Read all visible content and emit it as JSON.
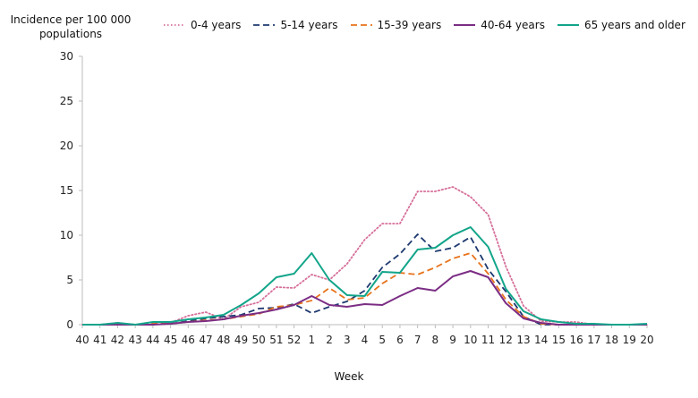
{
  "chart_data": {
    "type": "line",
    "title": "",
    "ylabel": "Incidence per 100 000\npopulations",
    "xlabel": "Week",
    "categories": [
      "40",
      "41",
      "42",
      "43",
      "44",
      "45",
      "46",
      "47",
      "48",
      "49",
      "50",
      "51",
      "52",
      "1",
      "2",
      "3",
      "4",
      "5",
      "6",
      "7",
      "8",
      "9",
      "10",
      "11",
      "12",
      "13",
      "14",
      "15",
      "16",
      "17",
      "18",
      "19",
      "20"
    ],
    "ylim": [
      0,
      30
    ],
    "yticks": [
      0,
      5,
      10,
      15,
      20,
      25,
      30
    ],
    "grid": false,
    "legend_position": "top",
    "series": [
      {
        "name": "0-4 years",
        "color": "#d6709a",
        "dash": "dotted",
        "values": [
          0,
          0,
          0.2,
          0,
          0,
          0.2,
          1.0,
          1.4,
          0.6,
          2.0,
          2.5,
          4.2,
          4.1,
          5.6,
          5.0,
          6.8,
          9.5,
          11.3,
          11.3,
          14.9,
          14.9,
          15.4,
          14.3,
          12.3,
          6.5,
          2.1,
          0.4,
          0.3,
          0.3,
          0,
          0,
          0,
          0
        ]
      },
      {
        "name": "5-14 years",
        "color": "#1f3a70",
        "dash": "dashed",
        "values": [
          0,
          0,
          0.1,
          0,
          0.1,
          0.1,
          0.4,
          0.7,
          0.9,
          1.1,
          1.8,
          1.9,
          2.3,
          1.3,
          2.0,
          2.6,
          3.8,
          6.4,
          7.9,
          10.1,
          8.2,
          8.6,
          9.8,
          6.2,
          3.7,
          0.9,
          0,
          0,
          0,
          0,
          0,
          0,
          0
        ]
      },
      {
        "name": "15-39 years",
        "color": "#e8731c",
        "dash": "dashed",
        "values": [
          0,
          0,
          0.1,
          0,
          0.1,
          0.1,
          0.3,
          0.5,
          0.6,
          0.9,
          1.2,
          2.0,
          2.2,
          2.7,
          4.1,
          2.8,
          3.0,
          4.6,
          5.8,
          5.6,
          6.4,
          7.4,
          8.0,
          5.7,
          2.8,
          0.9,
          0.1,
          0,
          0,
          0,
          0,
          0,
          0
        ]
      },
      {
        "name": "40-64 years",
        "color": "#7b2d84",
        "dash": "solid",
        "values": [
          0,
          0,
          0,
          0,
          0,
          0.1,
          0.3,
          0.4,
          0.6,
          1.0,
          1.3,
          1.7,
          2.2,
          3.2,
          2.2,
          2.0,
          2.3,
          2.2,
          3.2,
          4.1,
          3.8,
          5.4,
          6.0,
          5.3,
          2.4,
          0.7,
          0.2,
          0,
          0,
          0,
          0,
          0,
          0
        ]
      },
      {
        "name": "65 years and older",
        "color": "#13a58a",
        "dash": "solid",
        "values": [
          0,
          0,
          0.2,
          0,
          0.3,
          0.3,
          0.6,
          0.8,
          1.1,
          2.2,
          3.5,
          5.3,
          5.7,
          8.0,
          5.0,
          3.3,
          3.2,
          5.9,
          5.8,
          8.4,
          8.6,
          10.0,
          10.9,
          8.7,
          4.0,
          1.5,
          0.6,
          0.3,
          0.1,
          0.1,
          0,
          0,
          0.1
        ]
      }
    ]
  }
}
